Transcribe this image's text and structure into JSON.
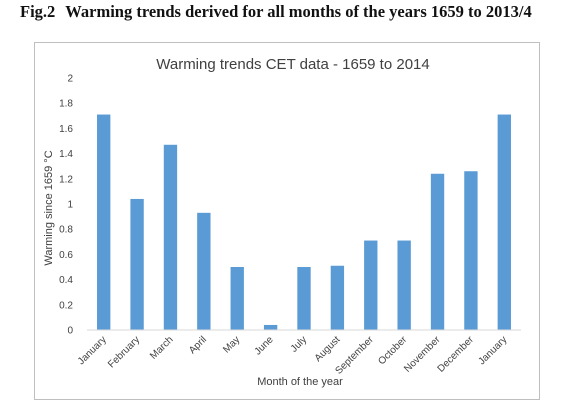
{
  "figure": {
    "number": "Fig.2",
    "caption": "Warming trends derived for all months of the years 1659 to 2013/4"
  },
  "chart_data": {
    "type": "bar",
    "title": "Warming trends CET data - 1659 to 2014",
    "xlabel": "Month of the year",
    "ylabel": "Warming since 1659 °C",
    "categories": [
      "January",
      "February",
      "March",
      "April",
      "May",
      "June",
      "July",
      "August",
      "September",
      "October",
      "November",
      "December",
      "January"
    ],
    "values": [
      1.71,
      1.04,
      1.47,
      0.93,
      0.5,
      0.04,
      0.5,
      0.51,
      0.71,
      0.71,
      1.24,
      1.26,
      1.71
    ],
    "ylim": [
      0,
      2
    ],
    "yticks": [
      "0",
      "0.2",
      "0.4",
      "0.6",
      "0.8",
      "1",
      "1.2",
      "1.4",
      "1.6",
      "1.8",
      "2"
    ],
    "grid": false,
    "legend": "none",
    "bar_color": "#5b9bd5",
    "axis_color": "#d9d9d9",
    "text_color": "#404040"
  }
}
